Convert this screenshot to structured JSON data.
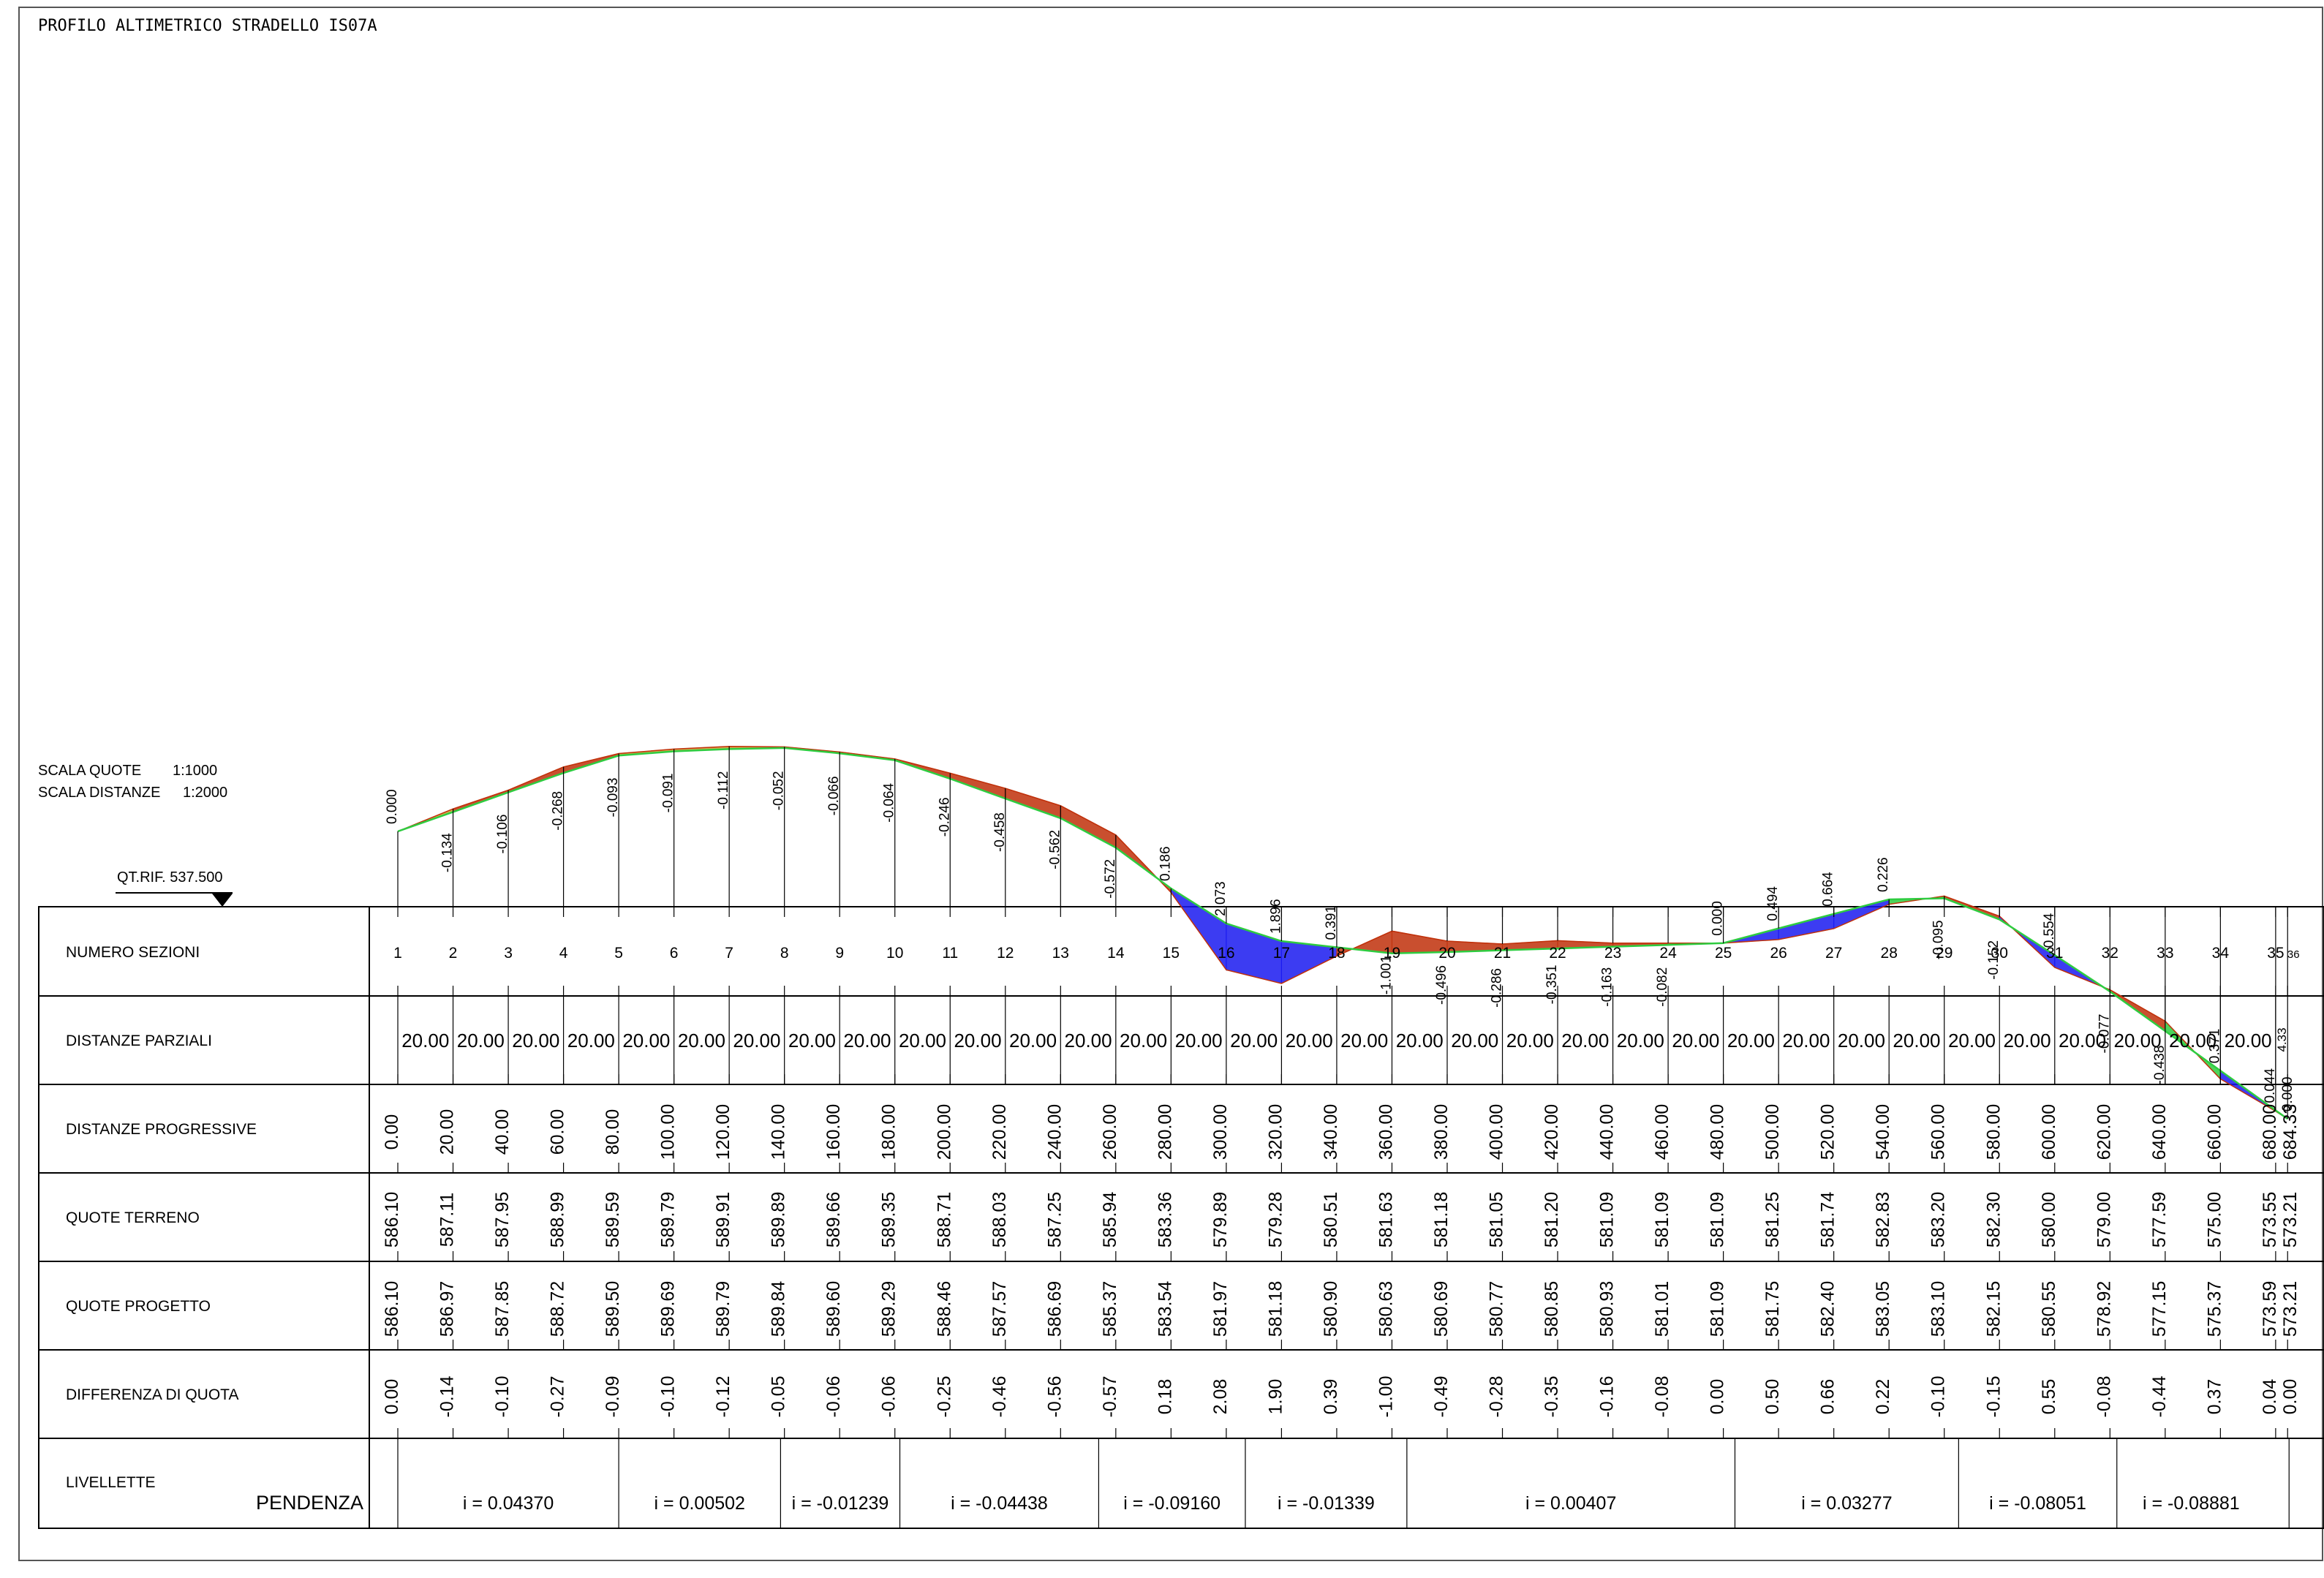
{
  "drawing": {
    "title": "PROFILO ALTIMETRICO STRADELLO IS07A",
    "scale_quote_label": "SCALA QUOTE",
    "scale_quote_value": "1:1000",
    "scale_distance_label": "SCALA DISTANZE",
    "scale_distance_value": "1:2000",
    "reference_label": "QT.RIF. 537.500",
    "reference_elevation": 537.5
  },
  "table": {
    "row_labels": {
      "sections": "NUMERO SEZIONI",
      "partial": "DISTANZE PARZIALI",
      "progressive": "DISTANZE PROGRESSIVE",
      "terrain": "QUOTE TERRENO",
      "project": "QUOTE PROGETTO",
      "difference": "DIFFERENZA DI QUOTA",
      "grade": "LIVELLETTE",
      "slope": "PENDENZA"
    }
  },
  "chart_data": {
    "type": "line",
    "sections": [
      "1",
      "2",
      "3",
      "4",
      "5",
      "6",
      "7",
      "8",
      "9",
      "10",
      "11",
      "12",
      "13",
      "14",
      "15",
      "16",
      "17",
      "18",
      "19",
      "20",
      "21",
      "22",
      "23",
      "24",
      "25",
      "26",
      "27",
      "28",
      "29",
      "30",
      "31",
      "32",
      "33",
      "34",
      "35",
      "36"
    ],
    "progressive": [
      0,
      20,
      40,
      60,
      80,
      100,
      120,
      140,
      160,
      180,
      200,
      220,
      240,
      260,
      280,
      300,
      320,
      340,
      360,
      380,
      400,
      420,
      440,
      460,
      480,
      500,
      520,
      540,
      560,
      580,
      600,
      620,
      640,
      660,
      680,
      684.33
    ],
    "progressive_labels": [
      "0.00",
      "20.00",
      "40.00",
      "60.00",
      "80.00",
      "100.00",
      "120.00",
      "140.00",
      "160.00",
      "180.00",
      "200.00",
      "220.00",
      "240.00",
      "260.00",
      "280.00",
      "300.00",
      "320.00",
      "340.00",
      "360.00",
      "380.00",
      "400.00",
      "420.00",
      "440.00",
      "460.00",
      "480.00",
      "500.00",
      "520.00",
      "540.00",
      "560.00",
      "580.00",
      "600.00",
      "620.00",
      "640.00",
      "660.00",
      "680.00",
      "684.33"
    ],
    "partial_labels": [
      "20.00",
      "20.00",
      "20.00",
      "20.00",
      "20.00",
      "20.00",
      "20.00",
      "20.00",
      "20.00",
      "20.00",
      "20.00",
      "20.00",
      "20.00",
      "20.00",
      "20.00",
      "20.00",
      "20.00",
      "20.00",
      "20.00",
      "20.00",
      "20.00",
      "20.00",
      "20.00",
      "20.00",
      "20.00",
      "20.00",
      "20.00",
      "20.00",
      "20.00",
      "20.00",
      "20.00",
      "20.00",
      "20.00",
      "20.00",
      "4.33"
    ],
    "terrain_labels": [
      "586.10",
      "587.11",
      "587.95",
      "588.99",
      "589.59",
      "589.79",
      "589.91",
      "589.89",
      "589.66",
      "589.35",
      "588.71",
      "588.03",
      "587.25",
      "585.94",
      "583.36",
      "579.89",
      "579.28",
      "580.51",
      "581.63",
      "581.18",
      "581.05",
      "581.20",
      "581.09",
      "581.09",
      "581.09",
      "581.25",
      "581.74",
      "582.83",
      "583.20",
      "582.30",
      "580.00",
      "579.00",
      "577.59",
      "575.00",
      "573.55",
      "573.21"
    ],
    "project_labels": [
      "586.10",
      "586.97",
      "587.85",
      "588.72",
      "589.50",
      "589.69",
      "589.79",
      "589.84",
      "589.60",
      "589.29",
      "588.46",
      "587.57",
      "586.69",
      "585.37",
      "583.54",
      "581.97",
      "581.18",
      "580.90",
      "580.63",
      "580.69",
      "580.77",
      "580.85",
      "580.93",
      "581.01",
      "581.09",
      "581.75",
      "582.40",
      "583.05",
      "583.10",
      "582.15",
      "580.55",
      "578.92",
      "577.15",
      "575.37",
      "573.59",
      "573.21"
    ],
    "difference_labels": [
      "0.00",
      "-0.14",
      "-0.10",
      "-0.27",
      "-0.09",
      "-0.10",
      "-0.12",
      "-0.05",
      "-0.06",
      "-0.06",
      "-0.25",
      "-0.46",
      "-0.56",
      "-0.57",
      "0.18",
      "2.08",
      "1.90",
      "0.39",
      "-1.00",
      "-0.49",
      "-0.28",
      "-0.35",
      "-0.16",
      "-0.08",
      "0.00",
      "0.50",
      "0.66",
      "0.22",
      "-0.10",
      "-0.15",
      "0.55",
      "-0.08",
      "-0.44",
      "0.37",
      "0.04",
      "0.00"
    ],
    "profile_labels": [
      "0.000",
      "-0.134",
      "-0.106",
      "-0.268",
      "-0.093",
      "-0.091",
      "-0.112",
      "-0.052",
      "-0.066",
      "-0.064",
      "-0.246",
      "-0.458",
      "-0.562",
      "-0.572",
      "0.186",
      "2.073",
      "1.896",
      "0.391",
      "-1.001",
      "-0.496",
      "-0.286",
      "-0.351",
      "-0.163",
      "-0.082",
      "0.000",
      "0.494",
      "0.664",
      "0.226",
      "-0.095",
      "-0.152",
      "0.554",
      "-0.077",
      "-0.438",
      "0.371",
      "0.044",
      "0.000"
    ],
    "grades": [
      {
        "from": 0,
        "to": 80,
        "label": "i = 0.04370"
      },
      {
        "from": 80,
        "to": 138.6,
        "label": "i = 0.00502"
      },
      {
        "from": 138.6,
        "to": 181.8,
        "label": "i = -0.01239"
      },
      {
        "from": 181.8,
        "to": 253.8,
        "label": "i = -0.04438"
      },
      {
        "from": 253.8,
        "to": 306.9,
        "label": "i = -0.09160"
      },
      {
        "from": 306.9,
        "to": 365.4,
        "label": "i = -0.01339"
      },
      {
        "from": 365.4,
        "to": 484.2,
        "label": "i = 0.00407"
      },
      {
        "from": 484.2,
        "to": 565.2,
        "label": "i = 0.03277"
      },
      {
        "from": 565.2,
        "to": 622.5,
        "label": "i = -0.08051"
      },
      {
        "from": 622.5,
        "to": 676.3,
        "label": "i = -0.08881"
      }
    ],
    "series_colors": {
      "project": "#2ecc40",
      "cut": "#c0300a",
      "fill": "#1a1af0",
      "mixed": "#c8a030"
    }
  }
}
